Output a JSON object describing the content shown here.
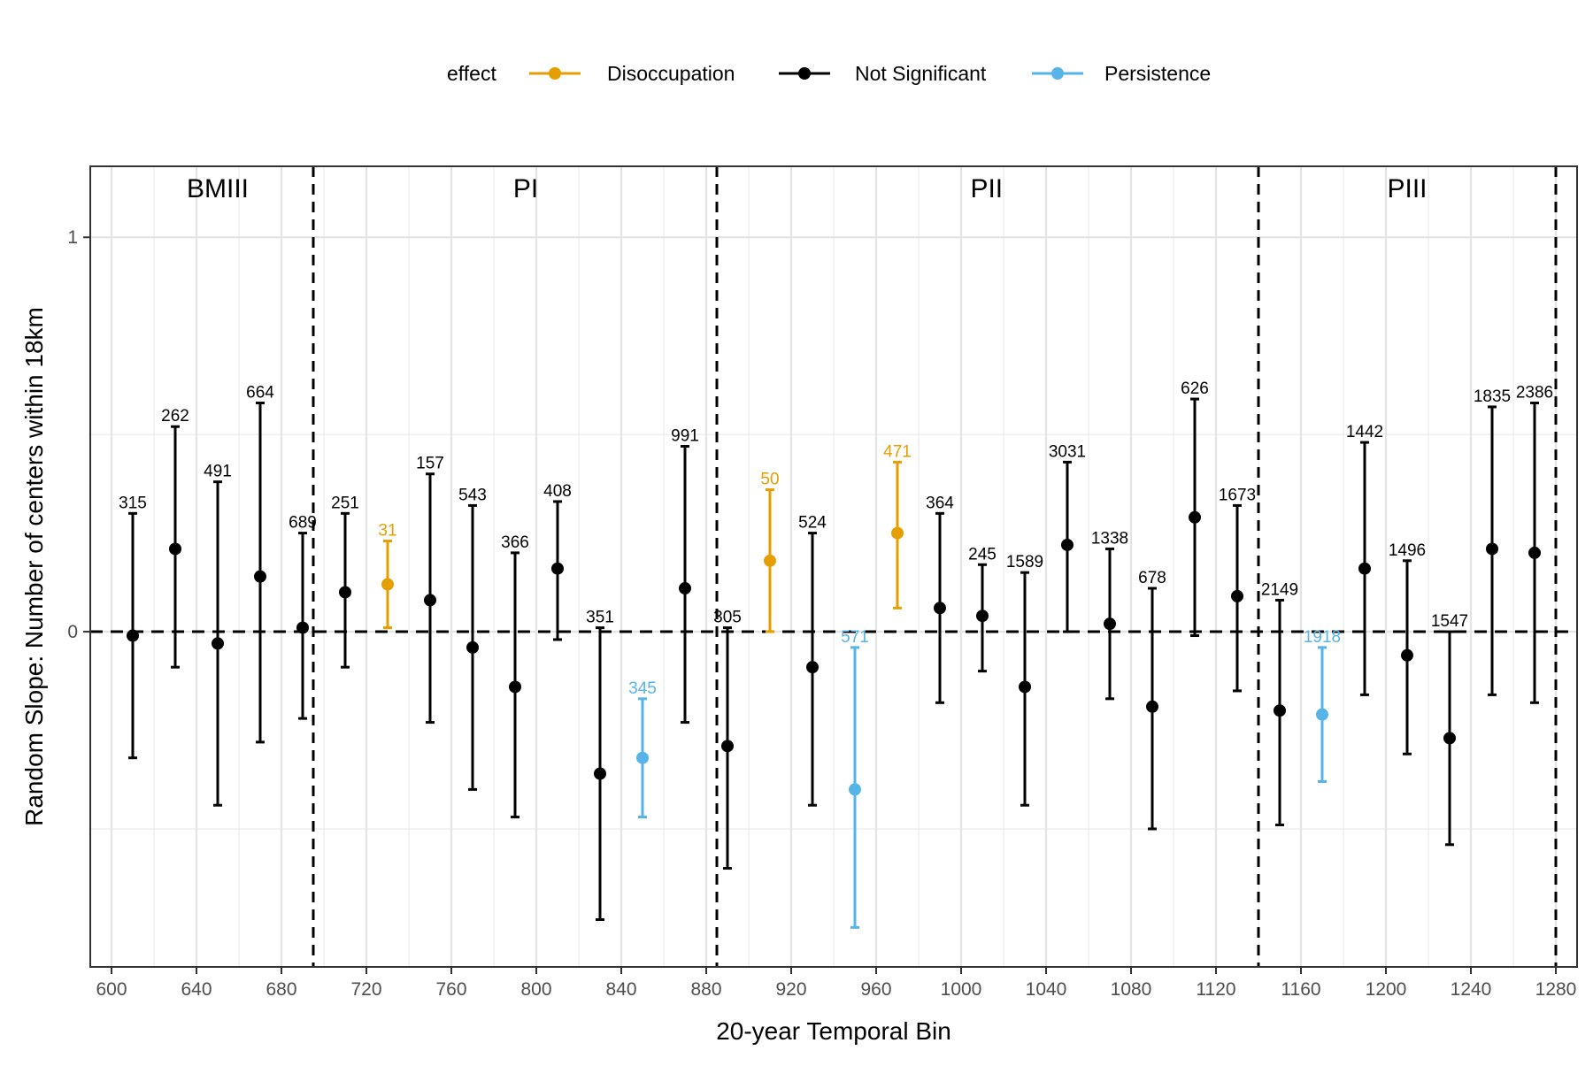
{
  "chart_data": {
    "type": "errorbar",
    "xlabel": "20-year Temporal Bin",
    "ylabel": "Random Slope: Number of centers within 18km",
    "xlim": [
      590,
      1290
    ],
    "ylim": [
      -0.85,
      1.18
    ],
    "x_ticks": [
      600,
      640,
      680,
      720,
      760,
      800,
      840,
      880,
      920,
      960,
      1000,
      1040,
      1080,
      1120,
      1160,
      1200,
      1240,
      1280
    ],
    "y_ticks": [
      0,
      1
    ],
    "y_minor_gridlines": [
      -0.5,
      0.5
    ],
    "grid": true,
    "zero_line": 0,
    "legend": {
      "title": "effect",
      "position": "top",
      "entries": [
        {
          "key": "Disoccupation",
          "label": "Disoccupation",
          "color": "#E69F00"
        },
        {
          "key": "Not Significant",
          "label": "Not Significant",
          "color": "#000000"
        },
        {
          "key": "Persistence",
          "label": "Persistence",
          "color": "#56B4E9"
        }
      ]
    },
    "period_boundaries": [
      695,
      885,
      1140,
      1280
    ],
    "periods": [
      {
        "label": "BMIII",
        "center_x": 650
      },
      {
        "label": "PI",
        "center_x": 795
      },
      {
        "label": "PII",
        "center_x": 1012
      },
      {
        "label": "PIII",
        "center_x": 1210
      }
    ],
    "points": [
      {
        "x": 610,
        "y": -0.01,
        "lower": -0.32,
        "upper": 0.3,
        "label": "315",
        "effect": "Not Significant"
      },
      {
        "x": 630,
        "y": 0.21,
        "lower": -0.09,
        "upper": 0.52,
        "label": "262",
        "effect": "Not Significant"
      },
      {
        "x": 650,
        "y": -0.03,
        "lower": -0.44,
        "upper": 0.38,
        "label": "491",
        "effect": "Not Significant"
      },
      {
        "x": 670,
        "y": 0.14,
        "lower": -0.28,
        "upper": 0.58,
        "label": "664",
        "effect": "Not Significant"
      },
      {
        "x": 690,
        "y": 0.01,
        "lower": -0.22,
        "upper": 0.25,
        "label": "689",
        "effect": "Not Significant"
      },
      {
        "x": 710,
        "y": 0.1,
        "lower": -0.09,
        "upper": 0.3,
        "label": "251",
        "effect": "Not Significant"
      },
      {
        "x": 730,
        "y": 0.12,
        "lower": 0.01,
        "upper": 0.23,
        "label": "31",
        "effect": "Disoccupation"
      },
      {
        "x": 750,
        "y": 0.08,
        "lower": -0.23,
        "upper": 0.4,
        "label": "157",
        "effect": "Not Significant"
      },
      {
        "x": 770,
        "y": -0.04,
        "lower": -0.4,
        "upper": 0.32,
        "label": "543",
        "effect": "Not Significant"
      },
      {
        "x": 790,
        "y": -0.14,
        "lower": -0.47,
        "upper": 0.2,
        "label": "366",
        "effect": "Not Significant"
      },
      {
        "x": 810,
        "y": 0.16,
        "lower": -0.02,
        "upper": 0.33,
        "label": "408",
        "effect": "Not Significant"
      },
      {
        "x": 830,
        "y": -0.36,
        "lower": -0.73,
        "upper": 0.01,
        "label": "351",
        "effect": "Not Significant"
      },
      {
        "x": 850,
        "y": -0.32,
        "lower": -0.47,
        "upper": -0.17,
        "label": "345",
        "effect": "Persistence"
      },
      {
        "x": 870,
        "y": 0.11,
        "lower": -0.23,
        "upper": 0.47,
        "label": "991",
        "effect": "Not Significant"
      },
      {
        "x": 890,
        "y": -0.29,
        "lower": -0.6,
        "upper": 0.01,
        "label": "305",
        "effect": "Not Significant"
      },
      {
        "x": 910,
        "y": 0.18,
        "lower": 0.0,
        "upper": 0.36,
        "label": "50",
        "effect": "Disoccupation"
      },
      {
        "x": 930,
        "y": -0.09,
        "lower": -0.44,
        "upper": 0.25,
        "label": "524",
        "effect": "Not Significant"
      },
      {
        "x": 950,
        "y": -0.4,
        "lower": -0.75,
        "upper": -0.04,
        "label": "571",
        "effect": "Persistence"
      },
      {
        "x": 970,
        "y": 0.25,
        "lower": 0.06,
        "upper": 0.43,
        "label": "471",
        "effect": "Disoccupation"
      },
      {
        "x": 990,
        "y": 0.06,
        "lower": -0.18,
        "upper": 0.3,
        "label": "364",
        "effect": "Not Significant"
      },
      {
        "x": 1010,
        "y": 0.04,
        "lower": -0.1,
        "upper": 0.17,
        "label": "245",
        "effect": "Not Significant"
      },
      {
        "x": 1030,
        "y": -0.14,
        "lower": -0.44,
        "upper": 0.15,
        "label": "1589",
        "effect": "Not Significant"
      },
      {
        "x": 1050,
        "y": 0.22,
        "lower": 0.0,
        "upper": 0.43,
        "label": "3031",
        "effect": "Not Significant"
      },
      {
        "x": 1070,
        "y": 0.02,
        "lower": -0.17,
        "upper": 0.21,
        "label": "1338",
        "effect": "Not Significant"
      },
      {
        "x": 1090,
        "y": -0.19,
        "lower": -0.5,
        "upper": 0.11,
        "label": "678",
        "effect": "Not Significant"
      },
      {
        "x": 1110,
        "y": 0.29,
        "lower": -0.01,
        "upper": 0.59,
        "label": "626",
        "effect": "Not Significant"
      },
      {
        "x": 1130,
        "y": 0.09,
        "lower": -0.15,
        "upper": 0.32,
        "label": "1673",
        "effect": "Not Significant"
      },
      {
        "x": 1150,
        "y": -0.2,
        "lower": -0.49,
        "upper": 0.08,
        "label": "2149",
        "effect": "Not Significant"
      },
      {
        "x": 1170,
        "y": -0.21,
        "lower": -0.38,
        "upper": -0.04,
        "label": "1918",
        "effect": "Persistence"
      },
      {
        "x": 1190,
        "y": 0.16,
        "lower": -0.16,
        "upper": 0.48,
        "label": "1442",
        "effect": "Not Significant"
      },
      {
        "x": 1210,
        "y": -0.06,
        "lower": -0.31,
        "upper": 0.18,
        "label": "1496",
        "effect": "Not Significant"
      },
      {
        "x": 1230,
        "y": -0.27,
        "lower": -0.54,
        "upper": 0.0,
        "label": "1547",
        "effect": "Not Significant"
      },
      {
        "x": 1250,
        "y": 0.21,
        "lower": -0.16,
        "upper": 0.57,
        "label": "1835",
        "effect": "Not Significant"
      },
      {
        "x": 1270,
        "y": 0.2,
        "lower": -0.18,
        "upper": 0.58,
        "label": "2386",
        "effect": "Not Significant"
      }
    ]
  }
}
